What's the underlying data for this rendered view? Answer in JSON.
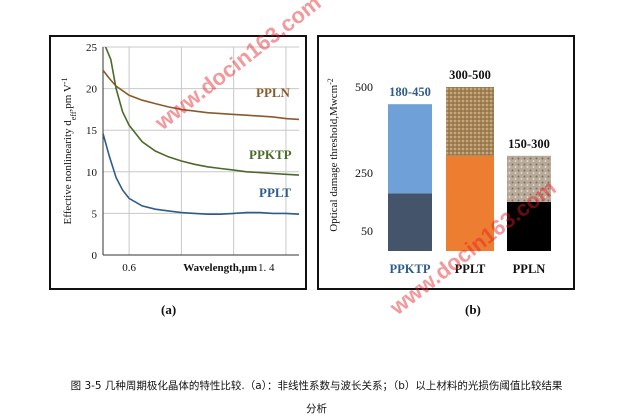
{
  "chart_data": [
    {
      "panel": "(a)",
      "type": "line",
      "ylabel_parts": [
        "Effective",
        "nonlinearity d",
        "eff",
        ",pm V",
        "-1"
      ],
      "xlabel": "Wavelength,μm",
      "x_ticks": [
        "0.6",
        "1. 4"
      ],
      "y_ticks": [
        0,
        5,
        10,
        15,
        20,
        25
      ],
      "ylim": [
        0,
        25
      ],
      "xlim": [
        0.4,
        1.9
      ],
      "grid": true,
      "series": [
        {
          "name": "PPLN",
          "color": "#8b5a2b",
          "x": [
            0.4,
            0.45,
            0.5,
            0.6,
            0.7,
            0.8,
            0.9,
            1.0,
            1.1,
            1.2,
            1.3,
            1.4,
            1.5,
            1.6,
            1.7,
            1.8,
            1.9
          ],
          "y": [
            22.2,
            21.2,
            20.3,
            19.2,
            18.6,
            18.2,
            17.8,
            17.5,
            17.3,
            17.1,
            17.0,
            16.9,
            16.8,
            16.7,
            16.6,
            16.4,
            16.3
          ]
        },
        {
          "name": "PPKTP",
          "color": "#4a6a2a",
          "x": [
            0.42,
            0.46,
            0.5,
            0.55,
            0.6,
            0.7,
            0.8,
            0.9,
            1.0,
            1.1,
            1.2,
            1.3,
            1.4,
            1.5,
            1.6,
            1.7,
            1.8,
            1.9
          ],
          "y": [
            25,
            23.5,
            20.0,
            17.2,
            15.6,
            13.6,
            12.5,
            11.8,
            11.3,
            10.9,
            10.6,
            10.4,
            10.2,
            10.0,
            9.9,
            9.8,
            9.7,
            9.6
          ]
        },
        {
          "name": "PPLT",
          "color": "#2e5c8a",
          "x": [
            0.4,
            0.45,
            0.5,
            0.55,
            0.6,
            0.7,
            0.8,
            0.9,
            1.0,
            1.1,
            1.2,
            1.3,
            1.4,
            1.5,
            1.6,
            1.7,
            1.8,
            1.9
          ],
          "y": [
            14.6,
            11.8,
            9.3,
            7.8,
            6.8,
            5.9,
            5.5,
            5.3,
            5.1,
            5.0,
            4.9,
            4.9,
            5.0,
            5.1,
            5.1,
            5.0,
            5.0,
            4.9
          ]
        }
      ]
    },
    {
      "panel": "(b)",
      "type": "bar",
      "ylabel": "Optical damage threshold,Mwcm",
      "ylabel_sup": "-2",
      "y_ticks": [
        50,
        250,
        500
      ],
      "categories": [
        "PPKTP",
        "PPLT",
        "PPLN"
      ],
      "category_colors": [
        "#2e5c8a",
        "#111111",
        "#111111"
      ],
      "ranges": [
        [
          180,
          450
        ],
        [
          300,
          500
        ],
        [
          150,
          300
        ]
      ],
      "range_labels": [
        "180-450",
        "300-500",
        "150-300"
      ],
      "range_label_colors": [
        "#2e5c8a",
        "#111111",
        "#111111"
      ],
      "lower_colors": [
        "#44546a",
        "#ed7d31",
        "#000000"
      ],
      "upper_colors": [
        "#6fa0d8",
        "#c8a878",
        "#b8aa98"
      ]
    }
  ],
  "panel_labels": {
    "a": "(a)",
    "b": "(b)"
  },
  "caption": {
    "line1": "图 3-5 几种周期极化晶体的特性比较.（a）：非线性系数与波长关系；（b）以上材料的光损伤阈值比较结果",
    "line2": "分析"
  },
  "watermark": "www.docin163.com"
}
